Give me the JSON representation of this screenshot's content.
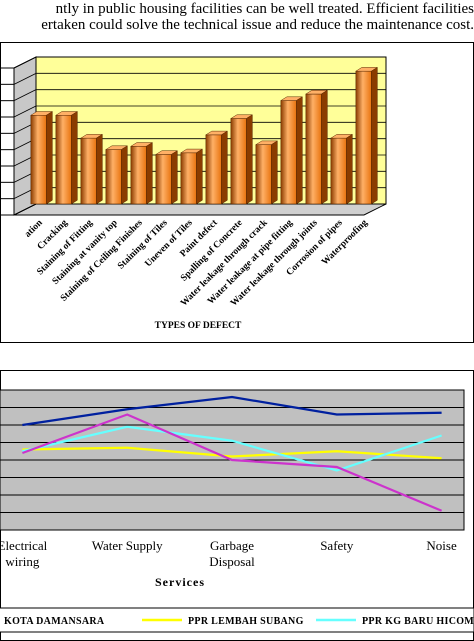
{
  "document": {
    "line1": "ntly in public housing facilities can be well treated. Efficient facilities",
    "line2": "ertaken could solve the technical issue and reduce the maintenance cost."
  },
  "chart_data": [
    {
      "type": "bar",
      "title": "",
      "xlabel": "TYPES OF DEFECT",
      "ylabel": "",
      "ylim": [
        0,
        9
      ],
      "grid": true,
      "categories": [
        "ation",
        "Cracking",
        "Staining of Fitting",
        "Staining at vanity top",
        "Staining of Ceiling Finishes",
        "Staining of Tiles",
        "Uneven of Tiles",
        "Paint defect",
        "Spalling of Concrete",
        "Water leakage through crack",
        "Water leakage at pipe fitting",
        "Water leakage through joints",
        "Corrosion of pipes",
        "Waterproofing"
      ],
      "values": [
        5.8,
        5.8,
        4.4,
        3.7,
        3.9,
        3.4,
        3.5,
        4.6,
        5.6,
        4.0,
        6.7,
        7.1,
        4.4,
        8.5
      ],
      "colors": {
        "bar": "#e87410",
        "bar_dark": "#8a3c00",
        "bar_light": "#ffb066",
        "plot_bg": "#ffff99",
        "frame": "#000000"
      }
    },
    {
      "type": "line",
      "xlabel": "Services",
      "ylabel": "",
      "ylim": [
        0,
        8
      ],
      "grid": true,
      "legend_position": "bottom",
      "categories": [
        "Electrical wiring",
        "Water Supply",
        "Garbage Disposal",
        "Safety",
        "Noise"
      ],
      "series": [
        {
          "name": "KOTA DAMANSARA",
          "color": "#00209f",
          "values": [
            6.0,
            6.9,
            7.6,
            6.6,
            6.7
          ]
        },
        {
          "name": "PPR LEMBAH SUBANG",
          "color": "#ffff00",
          "values": [
            4.6,
            4.7,
            4.2,
            4.5,
            4.1
          ]
        },
        {
          "name": "PPR KG BARU HICOM",
          "color": "#66ffff",
          "values": [
            4.5,
            5.9,
            5.1,
            3.4,
            5.4
          ]
        },
        {
          "name": "",
          "color": "#cc33cc",
          "values": [
            4.4,
            6.6,
            4.0,
            3.6,
            1.1
          ]
        }
      ]
    }
  ]
}
